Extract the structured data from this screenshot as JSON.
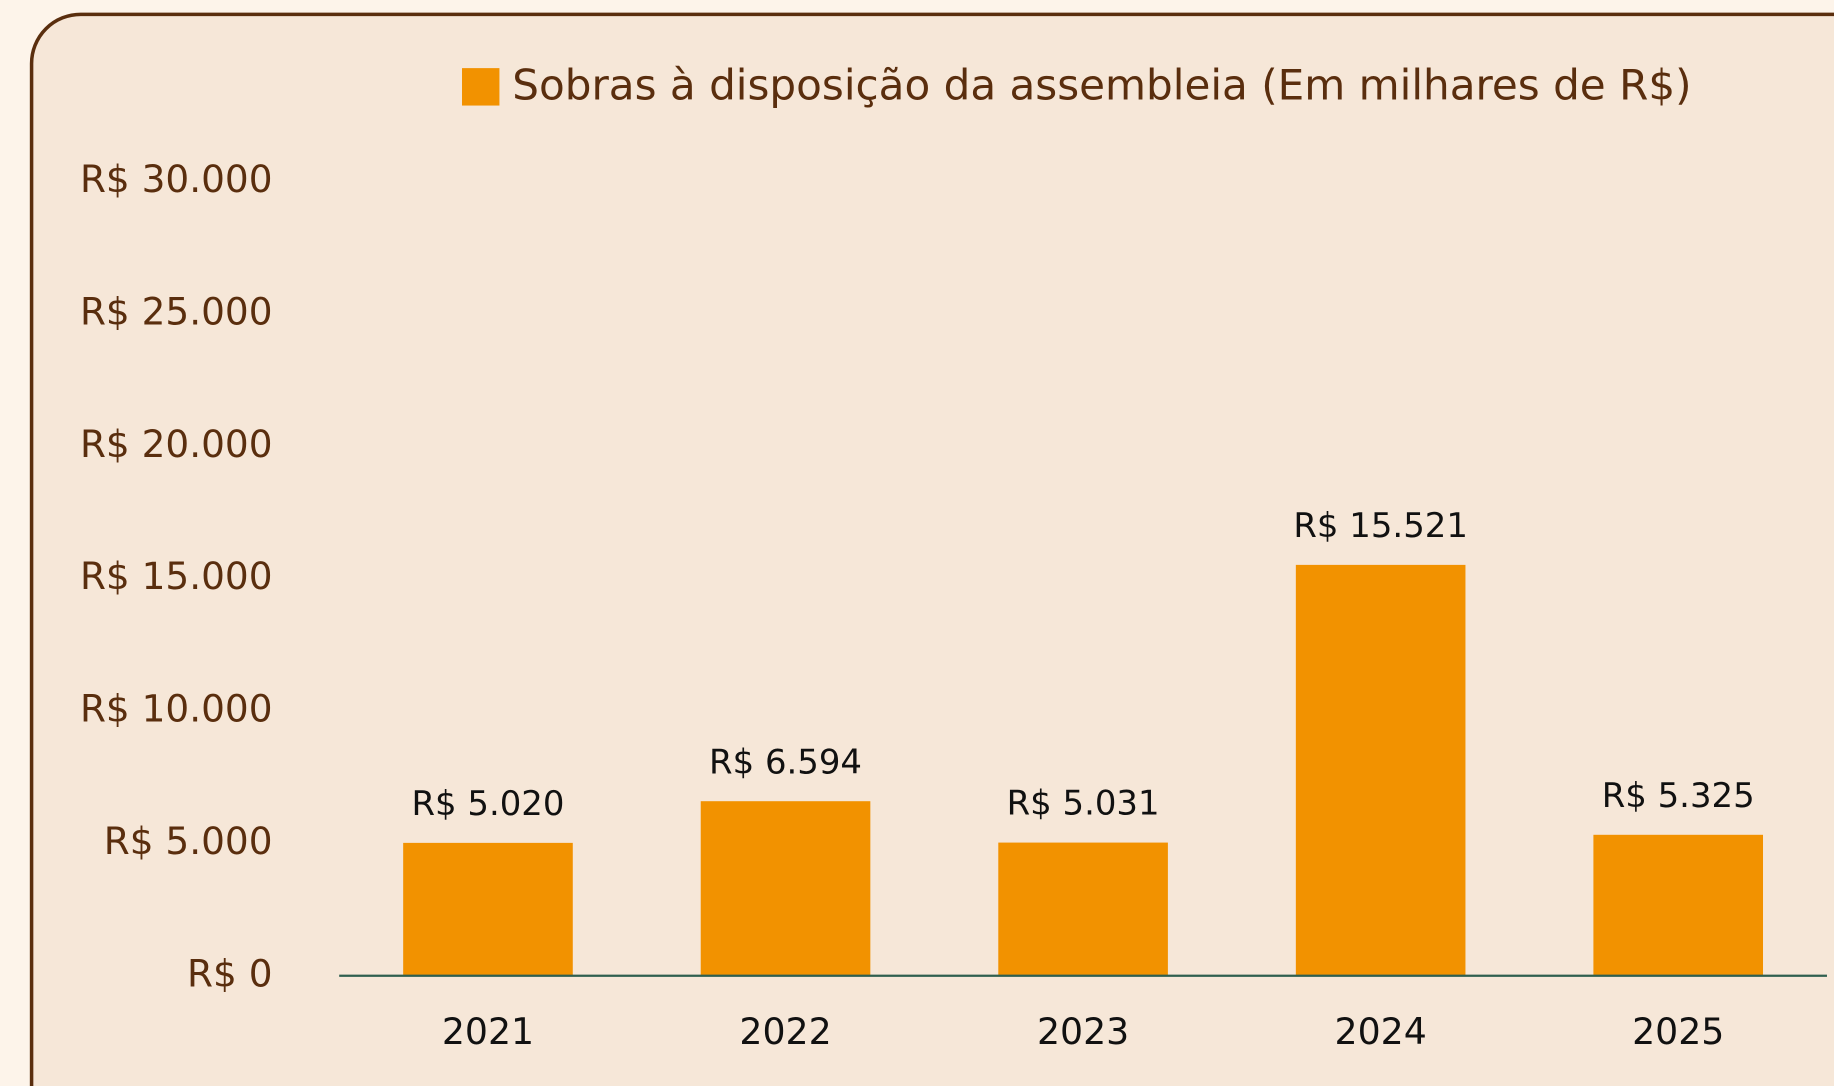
{
  "chart_data": {
    "type": "bar",
    "legend": "Sobras à disposição da assembleia (Em milhares de R$)",
    "categories": [
      "2021",
      "2022",
      "2023",
      "2024",
      "2025"
    ],
    "values": [
      5020,
      6594,
      5031,
      15521,
      5325
    ],
    "value_labels": [
      "R$ 5.020",
      "R$ 6.594",
      "R$ 5.031",
      "R$ 15.521",
      "R$ 5.325"
    ],
    "color": "#f29200",
    "ylim": [
      0,
      30000
    ],
    "yticks": [
      {
        "value": 0,
        "label": "R$ 0"
      },
      {
        "value": 5000,
        "label": "R$ 5.000"
      },
      {
        "value": 10000,
        "label": "R$ 10.000"
      },
      {
        "value": 15000,
        "label": "R$ 15.000"
      },
      {
        "value": 20000,
        "label": "R$ 20.000"
      },
      {
        "value": 25000,
        "label": "R$ 25.000"
      },
      {
        "value": 30000,
        "label": "R$ 30.000"
      }
    ],
    "grid": false
  }
}
